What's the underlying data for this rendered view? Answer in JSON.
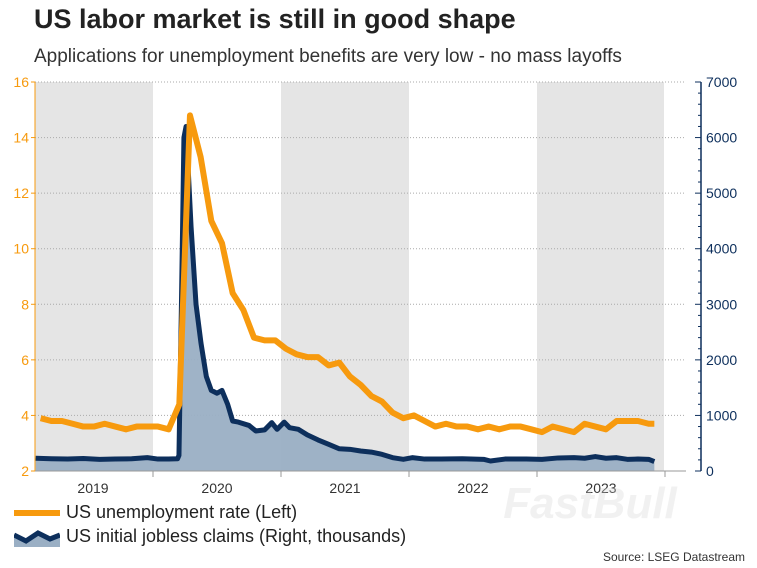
{
  "title": "US labor market is still in good shape",
  "subtitle": "Applications for unemployment benefits are very low - no mass layoffs",
  "source": "Source: LSEG Datastream",
  "watermark": "FastBull",
  "colors": {
    "unemployment": "#f79a0e",
    "claims": "#0d2f5c",
    "claims_fill": "#9aafc4",
    "shading": "#e5e5e5"
  },
  "chart_data": {
    "type": "line",
    "title": "US labor market is still in good shape",
    "x_ticks": [
      "2019",
      "2020",
      "2021",
      "2022",
      "2023"
    ],
    "shaded_years": [
      "2019",
      "2021",
      "2023"
    ],
    "grid": true,
    "legend_placement": "bottom-left",
    "y_left": {
      "label": "",
      "range": [
        2,
        16
      ],
      "ticks": [
        2,
        4,
        6,
        8,
        10,
        12,
        14,
        16
      ]
    },
    "y_right": {
      "label": "",
      "range": [
        0,
        7000
      ],
      "ticks": [
        0,
        1000,
        2000,
        3000,
        4000,
        5000,
        6000,
        7000
      ]
    },
    "series": [
      {
        "name": "US unemployment rate (Left)",
        "axis": "left",
        "style": "line",
        "points": [
          [
            "2019-02-15",
            3.9
          ],
          [
            "2019-03-15",
            3.8
          ],
          [
            "2019-04-15",
            3.8
          ],
          [
            "2019-05-15",
            3.7
          ],
          [
            "2019-06-15",
            3.6
          ],
          [
            "2019-07-15",
            3.6
          ],
          [
            "2019-08-15",
            3.7
          ],
          [
            "2019-09-15",
            3.6
          ],
          [
            "2019-10-15",
            3.5
          ],
          [
            "2019-11-15",
            3.6
          ],
          [
            "2019-12-15",
            3.6
          ],
          [
            "2020-01-15",
            3.6
          ],
          [
            "2020-02-15",
            3.5
          ],
          [
            "2020-03-15",
            4.4
          ],
          [
            "2020-04-15",
            14.8
          ],
          [
            "2020-05-15",
            13.3
          ],
          [
            "2020-06-15",
            11.0
          ],
          [
            "2020-07-15",
            10.2
          ],
          [
            "2020-08-15",
            8.4
          ],
          [
            "2020-09-15",
            7.8
          ],
          [
            "2020-10-15",
            6.8
          ],
          [
            "2020-11-15",
            6.7
          ],
          [
            "2020-12-15",
            6.7
          ],
          [
            "2021-01-15",
            6.4
          ],
          [
            "2021-02-15",
            6.2
          ],
          [
            "2021-03-15",
            6.1
          ],
          [
            "2021-04-15",
            6.1
          ],
          [
            "2021-05-15",
            5.8
          ],
          [
            "2021-06-15",
            5.9
          ],
          [
            "2021-07-15",
            5.4
          ],
          [
            "2021-08-15",
            5.1
          ],
          [
            "2021-09-15",
            4.7
          ],
          [
            "2021-10-15",
            4.5
          ],
          [
            "2021-11-15",
            4.1
          ],
          [
            "2021-12-15",
            3.9
          ],
          [
            "2022-01-15",
            4.0
          ],
          [
            "2022-02-15",
            3.8
          ],
          [
            "2022-03-15",
            3.6
          ],
          [
            "2022-04-15",
            3.7
          ],
          [
            "2022-05-15",
            3.6
          ],
          [
            "2022-06-15",
            3.6
          ],
          [
            "2022-07-15",
            3.5
          ],
          [
            "2022-08-15",
            3.6
          ],
          [
            "2022-09-15",
            3.5
          ],
          [
            "2022-10-15",
            3.6
          ],
          [
            "2022-11-15",
            3.6
          ],
          [
            "2022-12-15",
            3.5
          ],
          [
            "2023-01-15",
            3.4
          ],
          [
            "2023-02-15",
            3.6
          ],
          [
            "2023-03-15",
            3.5
          ],
          [
            "2023-04-15",
            3.4
          ],
          [
            "2023-05-15",
            3.7
          ],
          [
            "2023-06-15",
            3.6
          ],
          [
            "2023-07-15",
            3.5
          ],
          [
            "2023-08-15",
            3.8
          ],
          [
            "2023-09-15",
            3.8
          ],
          [
            "2023-10-15",
            3.8
          ],
          [
            "2023-11-15",
            3.7
          ],
          [
            "2023-12-01",
            3.7
          ]
        ]
      },
      {
        "name": "US initial jobless claims (Right, thousands)",
        "axis": "right",
        "style": "area",
        "points": [
          [
            "2019-02-01",
            230
          ],
          [
            "2019-03-15",
            220
          ],
          [
            "2019-05-01",
            215
          ],
          [
            "2019-06-15",
            225
          ],
          [
            "2019-08-01",
            210
          ],
          [
            "2019-09-15",
            215
          ],
          [
            "2019-11-01",
            220
          ],
          [
            "2019-12-15",
            240
          ],
          [
            "2020-01-15",
            215
          ],
          [
            "2020-02-15",
            215
          ],
          [
            "2020-03-10",
            220
          ],
          [
            "2020-03-14",
            280
          ],
          [
            "2020-03-21",
            3000
          ],
          [
            "2020-03-28",
            6000
          ],
          [
            "2020-04-04",
            6200
          ],
          [
            "2020-04-18",
            4400
          ],
          [
            "2020-05-02",
            3000
          ],
          [
            "2020-05-16",
            2300
          ],
          [
            "2020-06-01",
            1700
          ],
          [
            "2020-06-15",
            1450
          ],
          [
            "2020-07-01",
            1400
          ],
          [
            "2020-07-15",
            1450
          ],
          [
            "2020-08-01",
            1200
          ],
          [
            "2020-08-15",
            900
          ],
          [
            "2020-09-01",
            880
          ],
          [
            "2020-10-01",
            820
          ],
          [
            "2020-10-20",
            720
          ],
          [
            "2020-11-15",
            740
          ],
          [
            "2020-12-05",
            870
          ],
          [
            "2020-12-20",
            750
          ],
          [
            "2021-01-10",
            880
          ],
          [
            "2021-01-25",
            780
          ],
          [
            "2021-02-20",
            750
          ],
          [
            "2021-03-15",
            650
          ],
          [
            "2021-04-15",
            560
          ],
          [
            "2021-05-15",
            480
          ],
          [
            "2021-06-15",
            400
          ],
          [
            "2021-07-15",
            390
          ],
          [
            "2021-08-15",
            360
          ],
          [
            "2021-09-15",
            340
          ],
          [
            "2021-10-15",
            300
          ],
          [
            "2021-11-15",
            240
          ],
          [
            "2021-12-15",
            210
          ],
          [
            "2022-01-10",
            240
          ],
          [
            "2022-02-15",
            215
          ],
          [
            "2022-04-01",
            215
          ],
          [
            "2022-06-01",
            220
          ],
          [
            "2022-08-01",
            210
          ],
          [
            "2022-08-20",
            180
          ],
          [
            "2022-10-01",
            215
          ],
          [
            "2022-12-01",
            215
          ],
          [
            "2023-01-15",
            210
          ],
          [
            "2023-03-01",
            235
          ],
          [
            "2023-04-15",
            240
          ],
          [
            "2023-05-15",
            230
          ],
          [
            "2023-06-15",
            260
          ],
          [
            "2023-07-15",
            230
          ],
          [
            "2023-08-15",
            240
          ],
          [
            "2023-09-15",
            210
          ],
          [
            "2023-10-15",
            215
          ],
          [
            "2023-11-15",
            210
          ],
          [
            "2023-12-01",
            170
          ]
        ]
      }
    ]
  },
  "legend": [
    {
      "label": "US unemployment rate (Left)"
    },
    {
      "label": "US initial jobless claims (Right, thousands)"
    }
  ]
}
